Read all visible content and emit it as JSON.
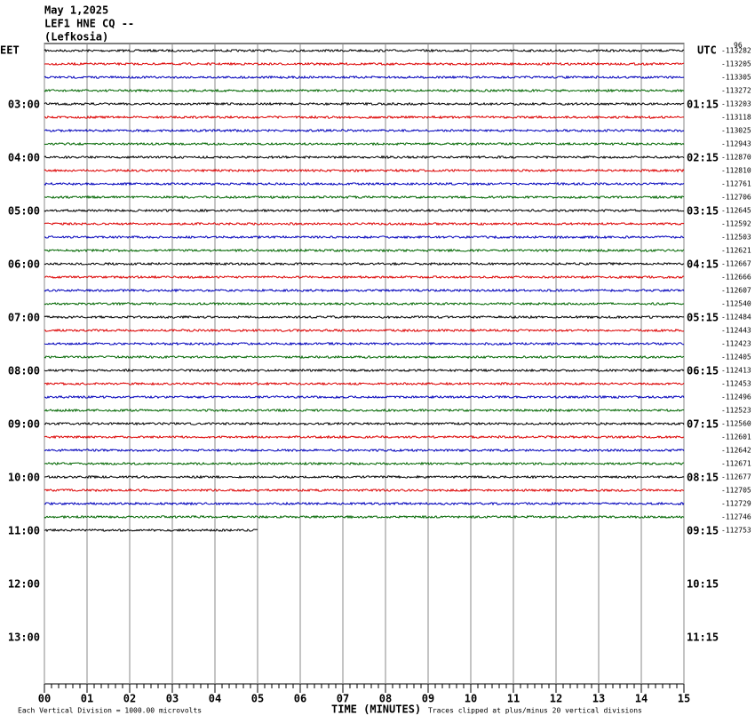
{
  "header": {
    "date": "May 1,2025",
    "station": "LEF1 HNE CQ --",
    "location": "(Lefkosia)"
  },
  "corner_note": "96",
  "left_axis": {
    "title": "EET",
    "labels": [
      "03:00",
      "04:00",
      "05:00",
      "06:00",
      "07:00",
      "08:00",
      "09:00",
      "10:00",
      "11:00",
      "12:00",
      "13:00"
    ]
  },
  "right_axis": {
    "title": "UTC",
    "labels": [
      "01:15",
      "02:15",
      "03:15",
      "04:15",
      "05:15",
      "06:15",
      "07:15",
      "08:15",
      "09:15",
      "10:15",
      "11:15"
    ],
    "offsets": [
      "-113282",
      "-113205",
      "-113305",
      "-113272",
      "-113203",
      "-113118",
      "-113025",
      "-112943",
      "-112870",
      "-112810",
      "-112761",
      "-112706",
      "-112645",
      "-112592",
      "-112503",
      "-112621",
      "-112667",
      "-112666",
      "-112607",
      "-112540",
      "-112484",
      "-112443",
      "-112423",
      "-112405",
      "-112413",
      "-112453",
      "-112496",
      "-112523",
      "-112560",
      "-112601",
      "-112642",
      "-112671",
      "-112677",
      "-112705",
      "-112729",
      "-112746",
      "-112753"
    ]
  },
  "trace_colors": [
    "#000000",
    "#dd0000",
    "#0000bb",
    "#006600"
  ],
  "last_trace_end_minute": 5,
  "x_axis": {
    "title": "TIME (MINUTES)",
    "labels": [
      "00",
      "01",
      "02",
      "03",
      "04",
      "05",
      "06",
      "07",
      "08",
      "09",
      "10",
      "11",
      "12",
      "13",
      "14",
      "15"
    ]
  },
  "footer": {
    "scale": "Each Vertical Division = 1000.00 microvolts",
    "clipping": "Traces clipped at plus/minus 20 vertical divisions"
  }
}
